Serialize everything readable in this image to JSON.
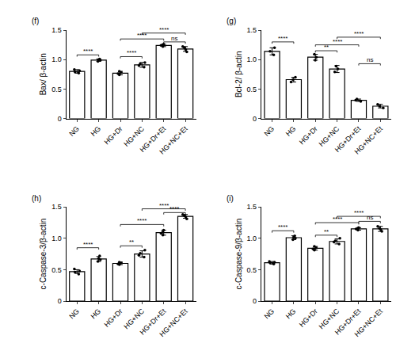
{
  "chart_data": [
    {
      "type": "bar",
      "title": "(f)",
      "y_label": "Bax/ β-actin",
      "color": "#ffffff",
      "grid": false,
      "categories": [
        "NG",
        "HG",
        "HG+Dr",
        "HG+NC",
        "HG+Dr+Et",
        "HG+NC+Et"
      ],
      "values": [
        0.8,
        0.99,
        0.77,
        0.91,
        1.24,
        1.18
      ],
      "errors": [
        0.03,
        0.02,
        0.03,
        0.04,
        0.02,
        0.04
      ],
      "points": [
        [
          0.77,
          0.79,
          0.81,
          0.83
        ],
        [
          0.97,
          0.99,
          1.0,
          1.01
        ],
        [
          0.74,
          0.76,
          0.78,
          0.8
        ],
        [
          0.87,
          0.9,
          0.93,
          0.95
        ],
        [
          1.22,
          1.24,
          1.25,
          1.26
        ],
        [
          1.13,
          1.17,
          1.2,
          1.22
        ]
      ],
      "ylim": [
        0,
        1.5
      ],
      "yticks": [
        0,
        0.5,
        {
          "value": 1,
          "label": "1.0"
        },
        1.5
      ],
      "comparisons": [
        {
          "groups": [
            "NG",
            "HG"
          ],
          "y": 1.08,
          "label": "****"
        },
        {
          "groups": [
            "HG+Dr",
            "HG+NC"
          ],
          "y": 1.05,
          "label": "****"
        },
        {
          "groups": [
            "HG+Dr",
            "HG+Dr+Et"
          ],
          "y": 1.35,
          "label": "****"
        },
        {
          "groups": [
            "HG+NC",
            "HG+NC+Et"
          ],
          "y": 1.45,
          "label": "****"
        },
        {
          "groups": [
            "HG+Dr+Et",
            "HG+NC+Et"
          ],
          "y": 1.3,
          "label": "ns"
        }
      ]
    },
    {
      "type": "bar",
      "title": "(g)",
      "y_label": "Bcl-2/ β-actin",
      "color": "#ffffff",
      "grid": false,
      "categories": [
        "NG",
        "HG",
        "HG+Dr",
        "HG+NC",
        "HG+Dr+Et",
        "HG+NC+Et"
      ],
      "values": [
        1.14,
        0.66,
        1.04,
        0.84,
        0.31,
        0.21
      ],
      "errors": [
        0.06,
        0.04,
        0.05,
        0.06,
        0.02,
        0.03
      ],
      "points": [
        [
          1.08,
          1.14,
          1.2
        ],
        [
          0.62,
          0.66,
          0.7
        ],
        [
          0.99,
          1.04,
          1.09
        ],
        [
          0.79,
          0.84,
          0.89
        ],
        [
          0.29,
          0.31,
          0.33
        ],
        [
          0.18,
          0.21,
          0.24
        ]
      ],
      "ylim": [
        0,
        1.5
      ],
      "yticks": [
        0,
        0.5,
        {
          "value": 1,
          "label": "1.0"
        },
        1.5
      ],
      "comparisons": [
        {
          "groups": [
            "NG",
            "HG"
          ],
          "y": 1.3,
          "label": "****"
        },
        {
          "groups": [
            "HG+Dr",
            "HG+NC"
          ],
          "y": 1.15,
          "label": "**"
        },
        {
          "groups": [
            "HG+Dr",
            "HG+Dr+Et"
          ],
          "y": 1.25,
          "label": "****"
        },
        {
          "groups": [
            "HG+NC",
            "HG+NC+Et"
          ],
          "y": 1.38,
          "label": "****"
        },
        {
          "groups": [
            "HG+Dr+Et",
            "HG+NC+Et"
          ],
          "y": 0.93,
          "label": "ns"
        }
      ]
    },
    {
      "type": "bar",
      "title": "(h)",
      "y_label": "c-Caspase-3/β-actin",
      "color": "#ffffff",
      "grid": false,
      "categories": [
        "NG",
        "HG",
        "HG+Dr",
        "HG+NC",
        "HG+Dr+Et",
        "HG+NC+Et"
      ],
      "values": [
        0.47,
        0.67,
        0.6,
        0.75,
        1.09,
        1.35
      ],
      "errors": [
        0.03,
        0.04,
        0.02,
        0.05,
        0.04,
        0.03
      ],
      "points": [
        [
          0.43,
          0.46,
          0.48,
          0.51
        ],
        [
          0.63,
          0.66,
          0.68,
          0.72
        ],
        [
          0.58,
          0.59,
          0.61,
          0.62
        ],
        [
          0.7,
          0.73,
          0.76,
          0.81
        ],
        [
          1.05,
          1.08,
          1.1,
          1.13
        ],
        [
          1.31,
          1.34,
          1.36,
          1.38
        ]
      ],
      "ylim": [
        0,
        1.5
      ],
      "yticks": [
        0,
        0.5,
        {
          "value": 1,
          "label": "1.0"
        },
        1.5
      ],
      "comparisons": [
        {
          "groups": [
            "NG",
            "HG"
          ],
          "y": 0.85,
          "label": "****"
        },
        {
          "groups": [
            "HG+Dr",
            "HG+NC"
          ],
          "y": 0.88,
          "label": "**"
        },
        {
          "groups": [
            "HG+Dr",
            "HG+Dr+Et"
          ],
          "y": 1.22,
          "label": "****"
        },
        {
          "groups": [
            "HG+NC",
            "HG+NC+Et"
          ],
          "y": 1.47,
          "label": "****"
        },
        {
          "groups": [
            "HG+Dr+Et",
            "HG+NC+Et"
          ],
          "y": 1.41,
          "label": "****"
        }
      ]
    },
    {
      "type": "bar",
      "title": "(i)",
      "y_label": "c-Caspase-9/β-actin",
      "color": "#ffffff",
      "grid": false,
      "categories": [
        "NG",
        "HG",
        "HG+Dr",
        "HG+NC",
        "HG+Dr+Et",
        "HG+NC+Et"
      ],
      "values": [
        0.61,
        1.01,
        0.84,
        0.95,
        1.15,
        1.15
      ],
      "errors": [
        0.02,
        0.03,
        0.03,
        0.04,
        0.02,
        0.04
      ],
      "points": [
        [
          0.59,
          0.61,
          0.62,
          0.63
        ],
        [
          0.98,
          1.0,
          1.02,
          1.04
        ],
        [
          0.81,
          0.83,
          0.85,
          0.87
        ],
        [
          0.91,
          0.94,
          0.96,
          1.0
        ],
        [
          1.13,
          1.15,
          1.16,
          1.17
        ],
        [
          1.11,
          1.14,
          1.16,
          1.19
        ]
      ],
      "ylim": [
        0,
        1.5
      ],
      "yticks": [
        0,
        0.5,
        {
          "value": 1,
          "label": "1.0"
        },
        1.5
      ],
      "comparisons": [
        {
          "groups": [
            "NG",
            "HG"
          ],
          "y": 1.12,
          "label": "****"
        },
        {
          "groups": [
            "HG+Dr",
            "HG+NC"
          ],
          "y": 1.05,
          "label": "**"
        },
        {
          "groups": [
            "HG+Dr",
            "HG+Dr+Et"
          ],
          "y": 1.25,
          "label": "****"
        },
        {
          "groups": [
            "HG+NC",
            "HG+NC+Et"
          ],
          "y": 1.35,
          "label": "****"
        },
        {
          "groups": [
            "HG+Dr+Et",
            "HG+NC+Et"
          ],
          "y": 1.27,
          "label": "ns"
        }
      ]
    }
  ]
}
